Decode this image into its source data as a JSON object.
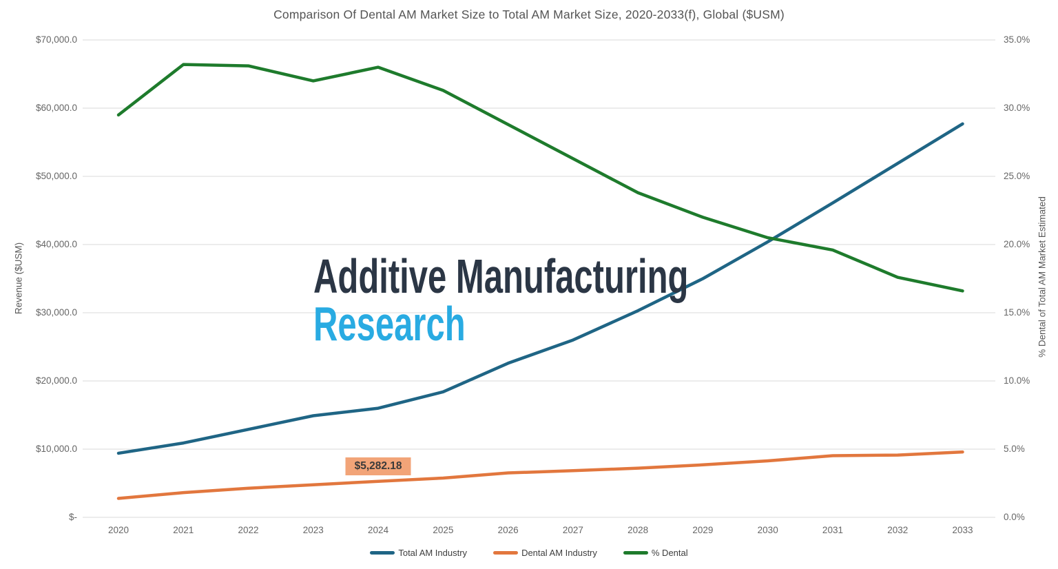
{
  "title": "Comparison Of Dental AM Market Size to Total AM Market Size, 2020-2033(f), Global ($USM)",
  "watermark": {
    "line1": "Additive Manufacturing",
    "line2": "Research",
    "color1": "#2B3645",
    "color2": "#29ABE2"
  },
  "colors": {
    "gridline": "#D9D9D9",
    "axis_text": "#666666",
    "title_text": "#545454",
    "annotation_bg": "#F2A478",
    "annotation_text": "#3A3A3A"
  },
  "chart_data": {
    "type": "line",
    "title": "Comparison Of Dental AM Market Size to Total AM Market Size, 2020-2033(f), Global ($USM)",
    "categories": [
      "2020",
      "2021",
      "2022",
      "2023",
      "2024",
      "2025",
      "2026",
      "2027",
      "2028",
      "2029",
      "2030",
      "2031",
      "2032",
      "2033"
    ],
    "series": [
      {
        "name": "Total AM Industry",
        "axis": "left",
        "color": "#1F6585",
        "values": [
          9400,
          10900,
          12900,
          14900,
          16000,
          18400,
          22600,
          26000,
          30300,
          35000,
          40400,
          46100,
          51900,
          57700
        ]
      },
      {
        "name": "Dental AM Industry",
        "axis": "left",
        "color": "#E2773E",
        "values": [
          2775,
          3620,
          4270,
          4770,
          5282.18,
          5760,
          6510,
          6840,
          7210,
          7700,
          8280,
          9040,
          9130,
          9580
        ]
      },
      {
        "name": "% Dental",
        "axis": "right",
        "color": "#1E7B2C",
        "values": [
          29.5,
          33.2,
          33.1,
          32.0,
          33.0,
          31.3,
          28.8,
          26.3,
          23.8,
          22.0,
          20.5,
          19.6,
          17.6,
          16.6
        ]
      }
    ],
    "left_axis": {
      "label": "Revenue ($USM)",
      "min": 0,
      "max": 70000,
      "tick_labels": [
        "$-",
        "$10,000.0",
        "$20,000.0",
        "$30,000.0",
        "$40,000.0",
        "$50,000.0",
        "$60,000.0",
        "$70,000.0"
      ]
    },
    "right_axis": {
      "label": "% Dental of Total AM Market Estimated",
      "min": 0,
      "max": 35,
      "tick_labels": [
        "0.0%",
        "5.0%",
        "10.0%",
        "15.0%",
        "20.0%",
        "25.0%",
        "30.0%",
        "35.0%"
      ]
    },
    "annotation": {
      "text": "$5,282.18",
      "series": "Dental AM Industry",
      "category": "2024"
    },
    "grid": true,
    "legend_position": "bottom"
  }
}
